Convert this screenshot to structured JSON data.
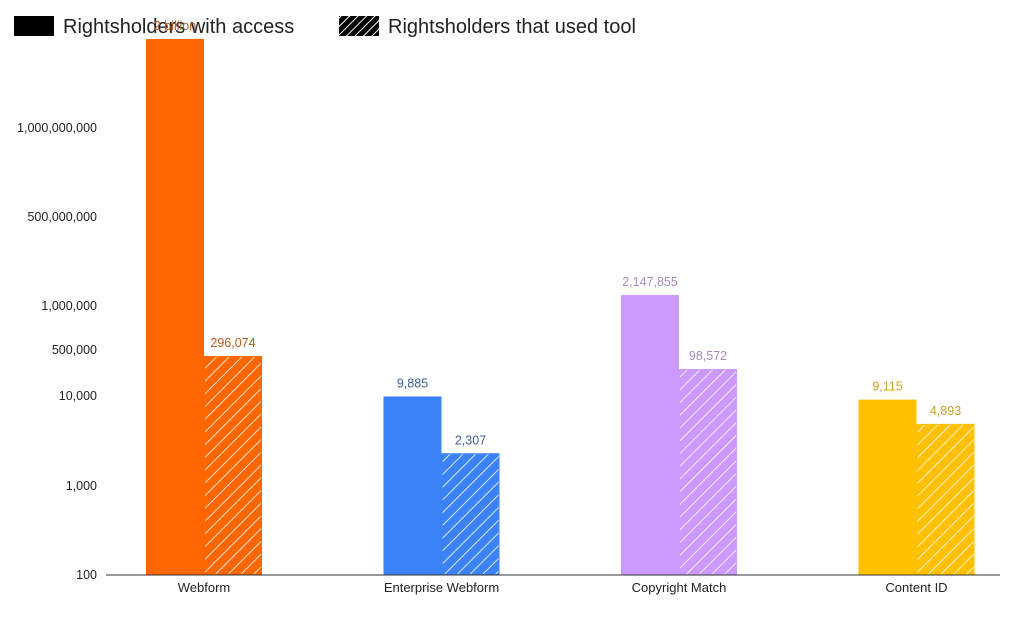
{
  "legend": {
    "access_label": "Rightsholders with access",
    "used_label": "Rightsholders that used tool"
  },
  "chart_data": {
    "type": "bar",
    "title": "",
    "xlabel": "",
    "ylabel": "",
    "yscale": "non-uniform (log-like, breaks between ticks)",
    "grid": false,
    "legend_position": "top-left",
    "y_ticks": [
      {
        "label": "100",
        "value": 100
      },
      {
        "label": "1,000",
        "value": 1000
      },
      {
        "label": "10,000",
        "value": 10000
      },
      {
        "label": "500,000",
        "value": 500000
      },
      {
        "label": "1,000,000",
        "value": 1000000
      },
      {
        "label": "500,000,000",
        "value": 500000000
      },
      {
        "label": "1,000,000,000",
        "value": 1000000000
      }
    ],
    "categories": [
      "Webform",
      "Enterprise Webform",
      "Copyright Match",
      "Content ID"
    ],
    "category_colors": [
      "#ff6600",
      "#3b82f6",
      "#cc99ff",
      "#ffc000"
    ],
    "label_colors": [
      "#b85c1c",
      "#3a5f98",
      "#a68bc4",
      "#c9a227"
    ],
    "series": [
      {
        "name": "Rightsholders with access",
        "pattern": "solid",
        "values": [
          2000000000,
          9885,
          2147855,
          9115
        ],
        "labels": [
          "2 billion",
          "9,885",
          "2,147,855",
          "9,115"
        ]
      },
      {
        "name": "Rightsholders that used tool",
        "pattern": "hatched",
        "values": [
          296074,
          2307,
          98572,
          4893
        ],
        "labels": [
          "296,074",
          "2,307",
          "98,572",
          "4,893"
        ]
      }
    ]
  }
}
